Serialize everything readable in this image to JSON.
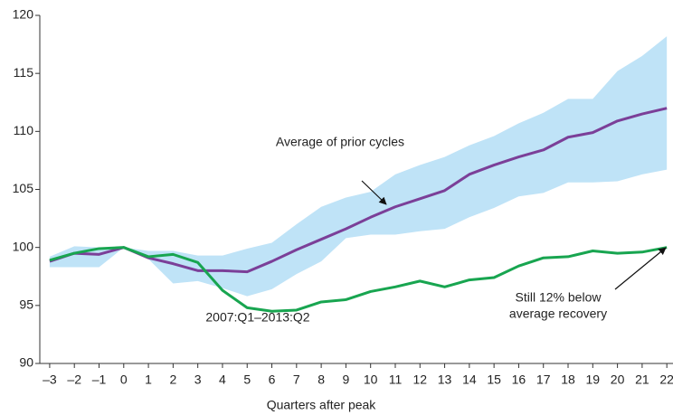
{
  "chart_data": {
    "type": "line",
    "x_label": "Quarters after peak",
    "x": [
      -3,
      -2,
      -1,
      0,
      1,
      2,
      3,
      4,
      5,
      6,
      7,
      8,
      9,
      10,
      11,
      12,
      13,
      14,
      15,
      16,
      17,
      18,
      19,
      20,
      21,
      22
    ],
    "series": [
      {
        "name": "Average of prior cycles",
        "color": "#7b3f98",
        "values": [
          98.8,
          99.5,
          99.4,
          100,
          99.1,
          98.6,
          98.0,
          98.0,
          97.9,
          98.8,
          99.8,
          100.7,
          101.6,
          102.6,
          103.5,
          104.2,
          104.9,
          106.3,
          107.1,
          107.8,
          108.4,
          109.5,
          109.9,
          110.9,
          111.5,
          112.0
        ]
      },
      {
        "name": "2007:Q1–2013:Q2",
        "color": "#18a550",
        "values": [
          98.9,
          99.5,
          99.9,
          100,
          99.2,
          99.4,
          98.7,
          96.3,
          94.8,
          94.5,
          94.6,
          95.3,
          95.5,
          96.2,
          96.6,
          97.1,
          96.6,
          97.2,
          97.4,
          98.4,
          99.1,
          99.2,
          99.7,
          99.5,
          99.6,
          100.0
        ]
      }
    ],
    "band": {
      "color": "#bfe3f7",
      "upper": [
        99.2,
        100.1,
        100.0,
        100.0,
        99.7,
        99.7,
        99.3,
        99.3,
        99.9,
        100.4,
        102.0,
        103.5,
        104.3,
        104.8,
        106.3,
        107.1,
        107.8,
        108.8,
        109.6,
        110.7,
        111.6,
        112.8,
        112.8,
        115.2,
        116.5,
        118.2
      ],
      "lower": [
        98.3,
        98.3,
        98.3,
        100,
        99.0,
        96.9,
        97.1,
        96.5,
        95.8,
        96.4,
        97.7,
        98.8,
        100.8,
        101.1,
        101.1,
        101.4,
        101.6,
        102.6,
        103.4,
        104.4,
        104.7,
        105.6,
        105.6,
        105.7,
        106.3,
        106.7
      ]
    },
    "annotations": [
      {
        "lines": [
          "Still 12% below",
          "average recovery"
        ]
      }
    ],
    "xlim": [
      -3.4,
      22.25
    ],
    "ylim": [
      90,
      120
    ],
    "xticks": [
      {
        "value": -3,
        "label": "–3"
      },
      {
        "value": -2,
        "label": "–2"
      },
      {
        "value": -1,
        "label": "–1"
      },
      0,
      1,
      2,
      3,
      4,
      5,
      6,
      7,
      8,
      9,
      10,
      11,
      12,
      13,
      14,
      15,
      16,
      17,
      18,
      19,
      20,
      21,
      22
    ],
    "yticks": [
      90,
      95,
      100,
      105,
      110,
      115,
      120
    ]
  }
}
